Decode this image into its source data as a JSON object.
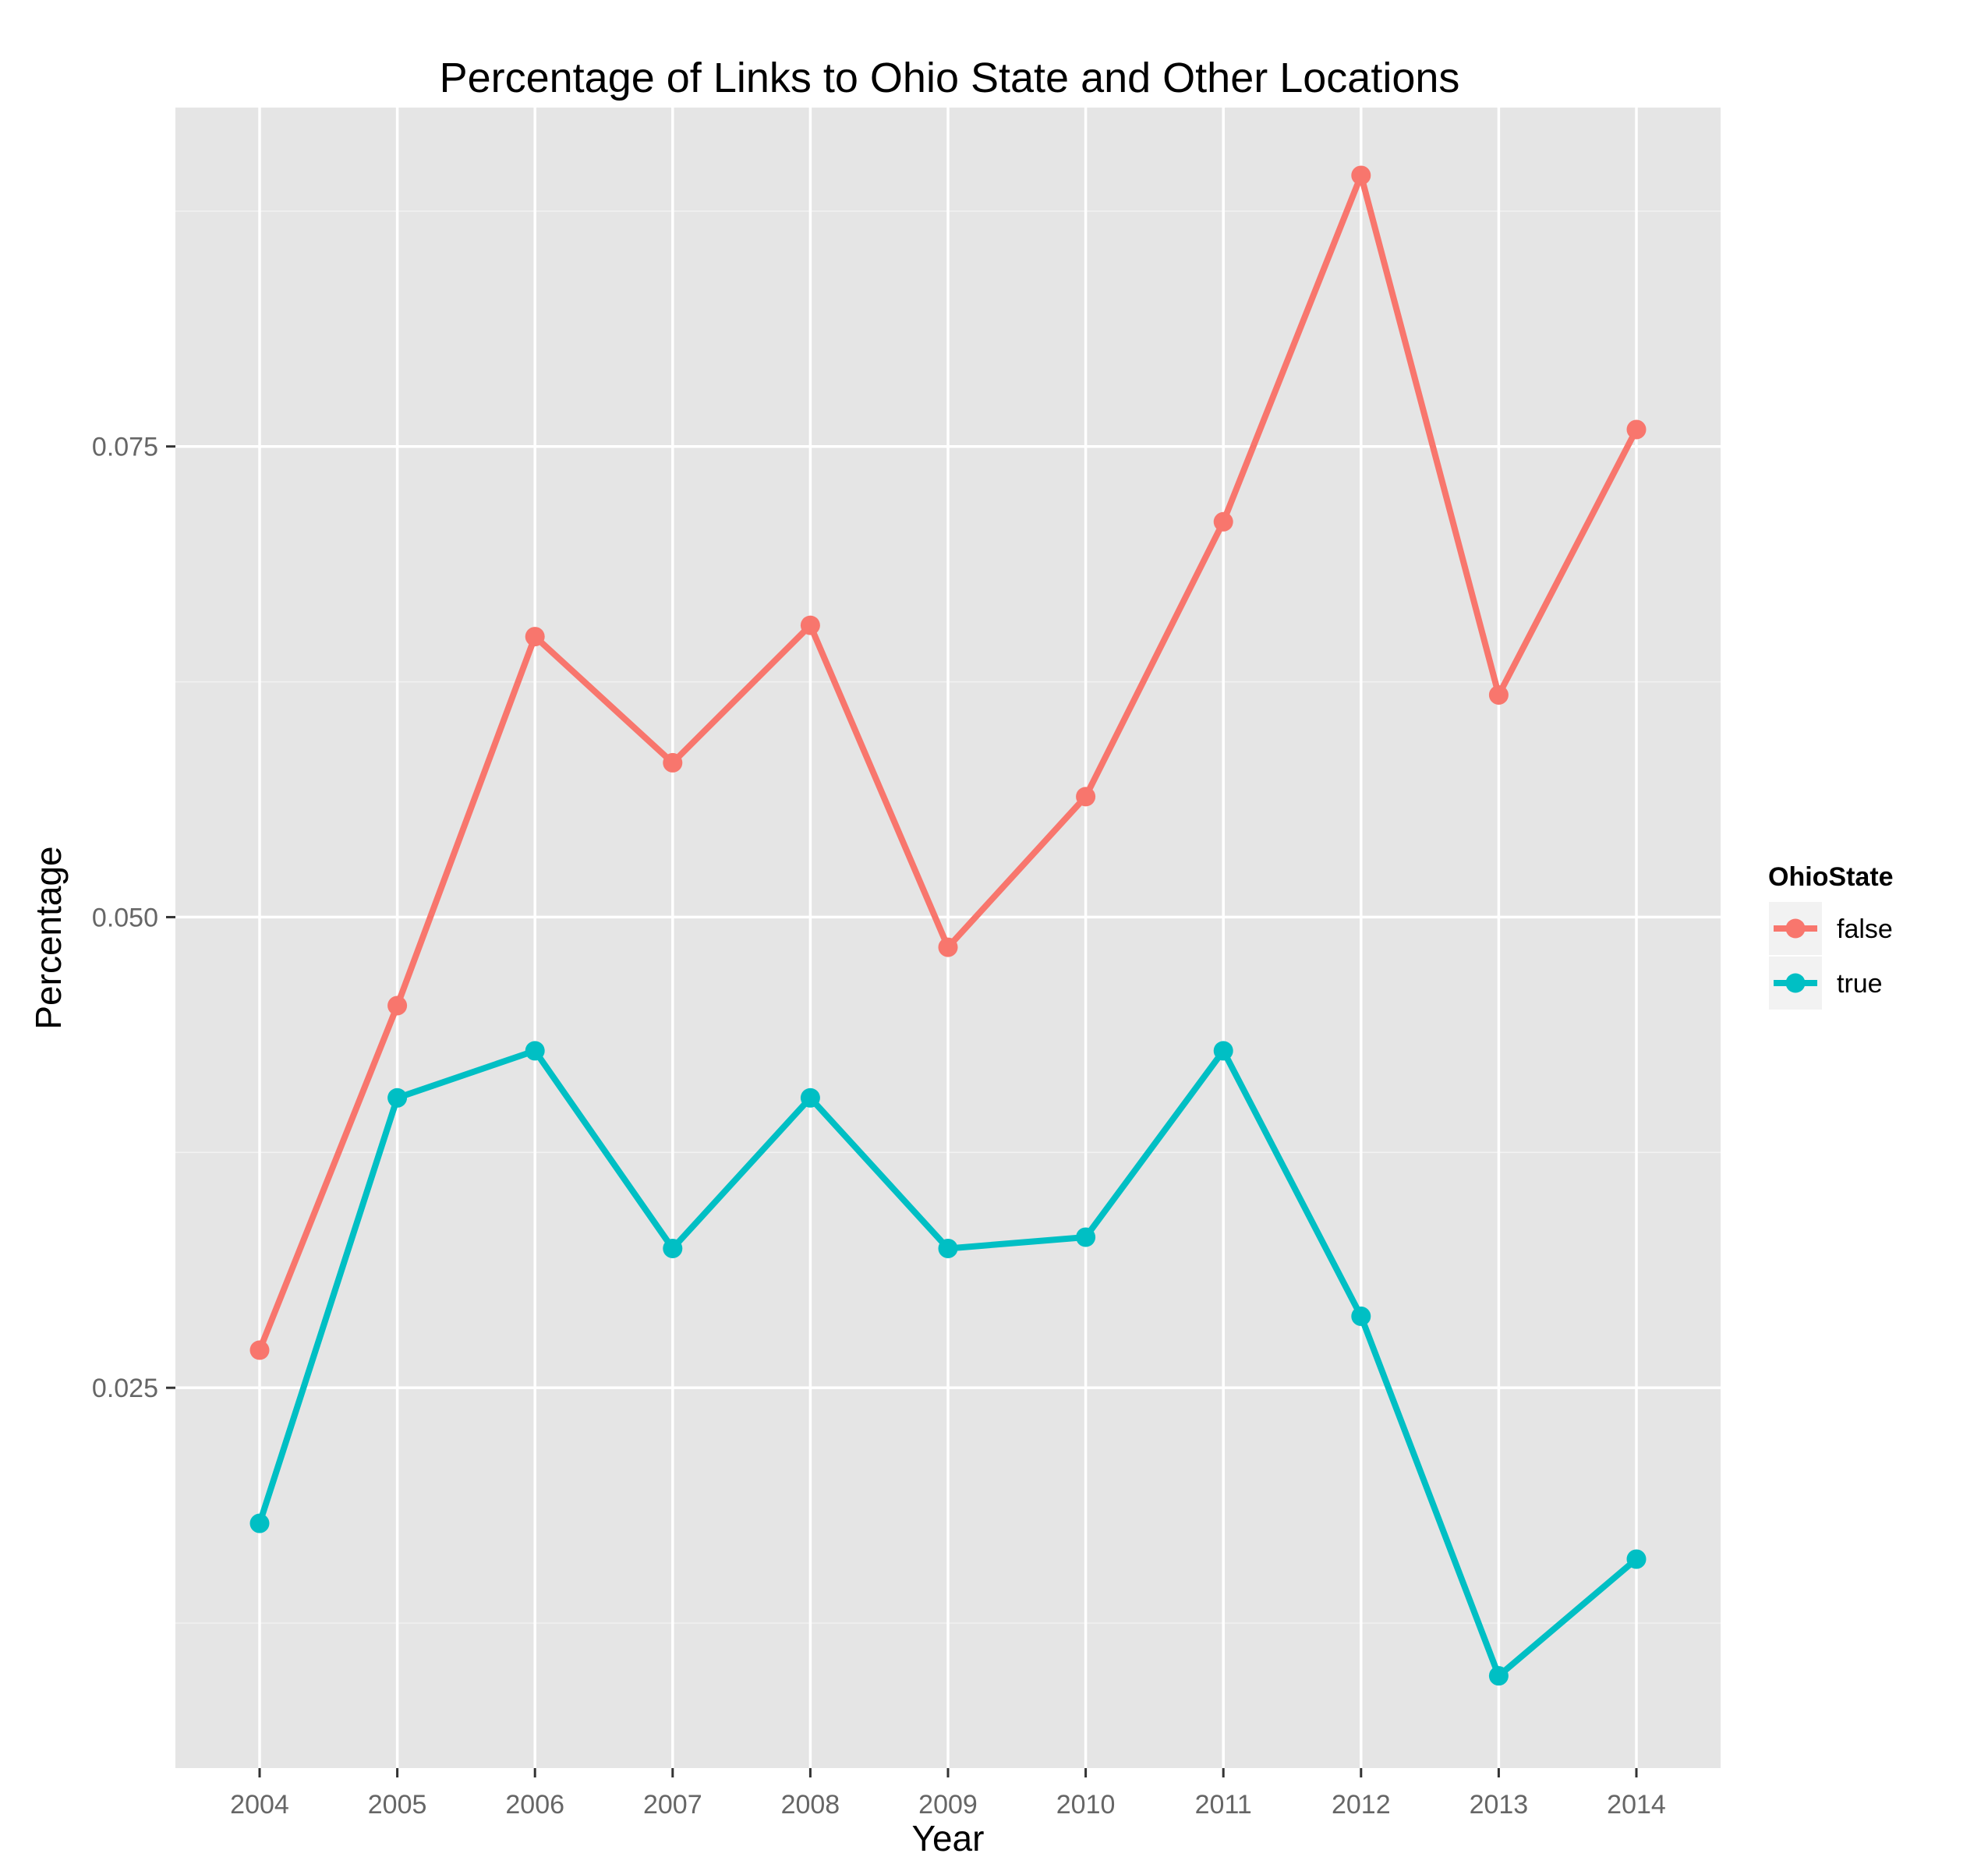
{
  "chart_data": {
    "type": "line",
    "title": "Percentage of Links to Ohio State and Other Locations",
    "xlabel": "Year",
    "ylabel": "Percentage",
    "x": [
      2004,
      2005,
      2006,
      2007,
      2008,
      2009,
      2010,
      2011,
      2012,
      2013,
      2014
    ],
    "x_tick_labels": [
      "2004",
      "2005",
      "2006",
      "2007",
      "2008",
      "2009",
      "2010",
      "2011",
      "2012",
      "2013",
      "2014"
    ],
    "y_ticks": [
      0.025,
      0.05,
      0.075
    ],
    "y_tick_labels": [
      "0.025",
      "0.050",
      "0.075"
    ],
    "ylim": [
      0.0048,
      0.093
    ],
    "grid": true,
    "legend": {
      "title": "OhioState",
      "placement": "right"
    },
    "series": [
      {
        "name": "false",
        "color": "#F8766D",
        "values": [
          0.027,
          0.0453,
          0.0649,
          0.0582,
          0.0655,
          0.0484,
          0.0564,
          0.071,
          0.0894,
          0.0618,
          0.0759
        ]
      },
      {
        "name": "true",
        "color": "#00BFC4",
        "values": [
          0.0178,
          0.0404,
          0.0429,
          0.0324,
          0.0404,
          0.0324,
          0.033,
          0.0429,
          0.0288,
          0.0097,
          0.0159
        ]
      }
    ]
  }
}
